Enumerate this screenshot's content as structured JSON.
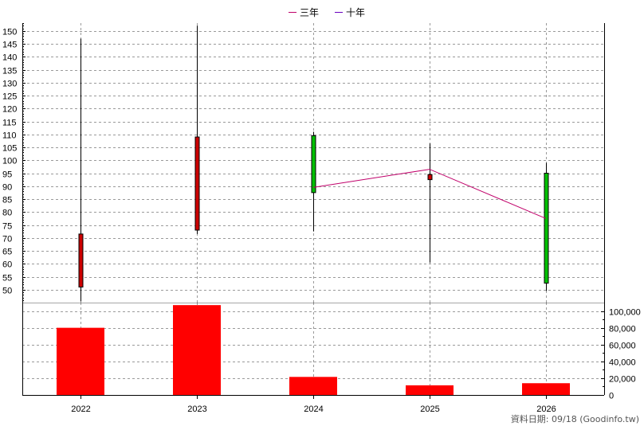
{
  "chart_data": {
    "type": "candlestick",
    "legend": [
      {
        "name": "三年",
        "color": "#c0006a"
      },
      {
        "name": "十年",
        "color": "#6a00c0"
      }
    ],
    "legend_position": "top-center",
    "grid": true,
    "categories": [
      "2022",
      "2023",
      "2024",
      "2025",
      "2026"
    ],
    "price_axis": {
      "ylim": [
        45,
        153
      ],
      "ticks": [
        50,
        55,
        60,
        65,
        70,
        75,
        80,
        85,
        90,
        95,
        100,
        105,
        110,
        115,
        120,
        125,
        130,
        135,
        140,
        145,
        150
      ]
    },
    "candles": [
      {
        "open": 51,
        "close": 71.5,
        "high": 147,
        "low": 45.5,
        "color": "#cc0000"
      },
      {
        "open": 73,
        "close": 109,
        "high": 152,
        "low": 71.5,
        "color": "#cc0000"
      },
      {
        "open": 109.5,
        "close": 87.5,
        "high": 111,
        "low": 72.5,
        "color": "#00c000"
      },
      {
        "open": 92.5,
        "close": 94.5,
        "high": 106.5,
        "low": 60.5,
        "color": "#cc0000"
      },
      {
        "open": 95,
        "close": 52.5,
        "high": 99,
        "low": 49.5,
        "color": "#00c000"
      }
    ],
    "series": [
      {
        "name": "三年",
        "color": "#c0006a",
        "points": [
          [
            2,
            89.5
          ],
          [
            3,
            96.5
          ],
          [
            4,
            77.5
          ]
        ]
      }
    ],
    "volume_axis": {
      "ylim": [
        0,
        110000
      ],
      "ticks": [
        {
          "value": 0,
          "label": "0"
        },
        {
          "value": 20000,
          "label": "20,000"
        },
        {
          "value": 40000,
          "label": "40,000"
        },
        {
          "value": 60000,
          "label": "60,000"
        },
        {
          "value": 80000,
          "label": "80,000"
        },
        {
          "value": 100000,
          "label": "100,000"
        }
      ]
    },
    "volume": [
      80000,
      107000,
      21500,
      11500,
      14000
    ],
    "volume_color": "#ff0000"
  },
  "footer": "資料日期: 09/18  (Goodinfo.tw)"
}
